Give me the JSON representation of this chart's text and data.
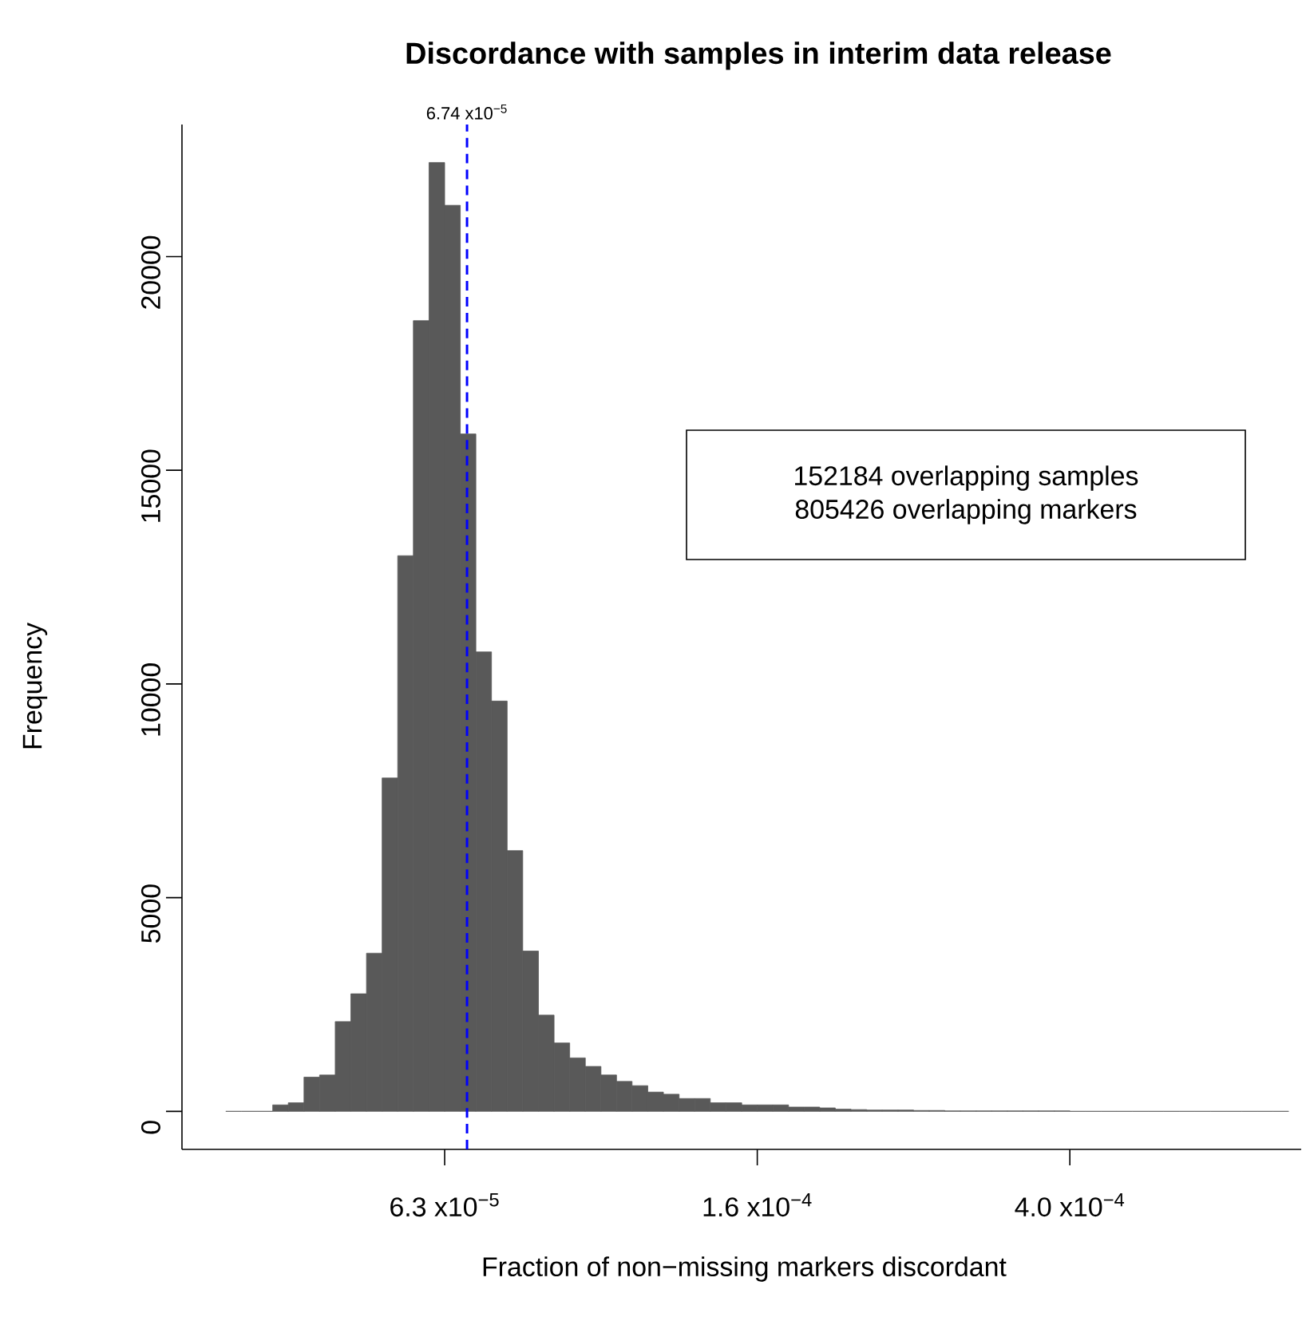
{
  "chart_data": {
    "type": "histogram",
    "title": "Discordance with samples in interim data release",
    "xlabel": "Fraction of non−missing markers discordant",
    "ylabel": "Frequency",
    "bins": [
      3.311e-05,
      3.467e-05,
      3.631e-05,
      3.802e-05,
      3.981e-05,
      4.169e-05,
      4.365e-05,
      4.571e-05,
      4.786e-05,
      5.012e-05,
      5.248e-05,
      5.495e-05,
      5.754e-05,
      6.026e-05,
      6.31e-05,
      6.607e-05,
      6.918e-05,
      7.244e-05,
      7.586e-05,
      7.943e-05,
      8.318e-05,
      8.71e-05,
      9.12e-05,
      9.55e-05,
      0.0001,
      0.0001047,
      0.0001096,
      0.0001148,
      0.0001202,
      0.0001259,
      0.0001318,
      0.000138,
      0.0001445,
      0.0001514,
      0.0001585,
      0.000166,
      0.0001738,
      0.000182,
      0.0001905,
      0.0001995,
      0.0002089,
      0.0002188,
      0.0002291,
      0.0002399,
      0.0002512,
      0.000263,
      0.0002754,
      0.0002884,
      0.000302,
      0.0003162,
      0.0003311,
      0.0003467,
      0.0003631,
      0.0003802,
      0.0003981,
      0.0004169,
      0.0004365,
      0.0004571,
      0.0004786,
      0.0005012,
      0.0005248,
      0.0005495,
      0.0005754,
      0.0006026,
      0.000631,
      0.0006607,
      0.0006918,
      0.0007244,
      0.0007586
    ],
    "values": [
      0,
      0,
      0,
      150,
      200,
      800,
      850,
      2100,
      2750,
      3700,
      7800,
      13000,
      18500,
      22200,
      21200,
      15850,
      10750,
      9600,
      6100,
      3750,
      2250,
      1600,
      1250,
      1050,
      850,
      700,
      600,
      450,
      400,
      300,
      300,
      200,
      200,
      150,
      150,
      150,
      100,
      100,
      80,
      50,
      40,
      30,
      30,
      30,
      20,
      20,
      10,
      10,
      10,
      10,
      10,
      10,
      10,
      10,
      0,
      0,
      0,
      0,
      0,
      0,
      0,
      0,
      0,
      0,
      0,
      0,
      0,
      0
    ],
    "color": "#595959",
    "log": "x",
    "xlim": [
      2.91e-05,
      0.000787
    ],
    "xticks": [
      {
        "value": 6.31e-05,
        "label": "6.3 x10$^{−5}$"
      },
      {
        "value": 0.0001585,
        "label": "1.6 x10$^{−4}$"
      },
      {
        "value": 0.0003981,
        "label": "4.0 x10$^{−4}$"
      }
    ],
    "ylim": [
      -890,
      23090
    ],
    "yticks": [
      0,
      5000,
      10000,
      15000,
      20000
    ],
    "ref_lines": [
      {
        "axis": "x",
        "value": 6.74e-05,
        "label": "6.74 x10$^{−5}$",
        "color": "#0000ff",
        "line_style": "dashed"
      }
    ],
    "annotations": [
      "152184 overlapping samples",
      "805426 overlapping markers"
    ],
    "grid": false
  }
}
